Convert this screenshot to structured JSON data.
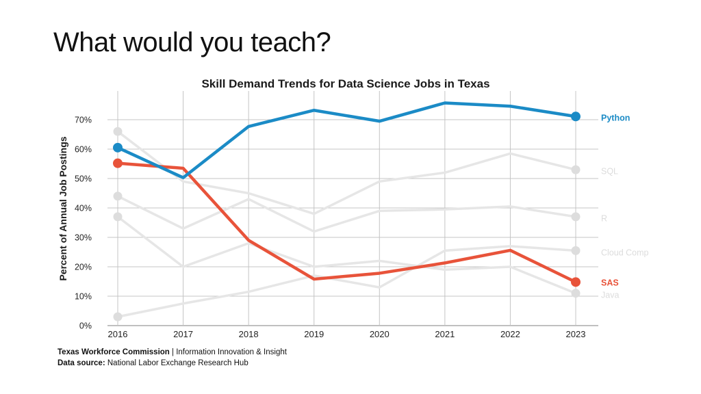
{
  "slide": {
    "title": "What would you teach?"
  },
  "footer": {
    "line1_bold": "Texas Workforce Commission",
    "line1_rest": " | Information Innovation & Insight",
    "line2_bold": "Data source:",
    "line2_rest": " National Labor Exchange Research Hub"
  },
  "colors": {
    "python": "#1b8bc6",
    "sas": "#e8533a",
    "muted_line": "#e6e6e6",
    "muted_label": "#dcdcdc",
    "grid": "#c4c4c4",
    "axis_text": "#222222"
  },
  "chart_data": {
    "type": "line",
    "title": "Skill Demand Trends for Data Science Jobs in Texas",
    "xlabel": "",
    "ylabel": "Percent of Annual Job Postings",
    "x": [
      2016,
      2017,
      2018,
      2019,
      2020,
      2021,
      2022,
      2023
    ],
    "ylim": [
      0,
      80
    ],
    "yticks": [
      0,
      10,
      20,
      30,
      40,
      50,
      60,
      70
    ],
    "ytick_labels": [
      "0%",
      "10%",
      "20%",
      "30%",
      "40%",
      "50%",
      "60%",
      "70%"
    ],
    "grid": true,
    "legend": "direct labels at right end of lines",
    "series": [
      {
        "name": "SQL",
        "values": [
          66,
          49,
          45,
          38,
          49,
          52,
          58.5,
          53
        ],
        "highlight": false
      },
      {
        "name": "R",
        "values": [
          44,
          33,
          43,
          32,
          39,
          39.5,
          40.5,
          37
        ],
        "highlight": false
      },
      {
        "name": "Cloud Comp",
        "values": [
          37,
          20,
          28,
          20,
          22,
          19,
          20,
          11
        ],
        "highlight": false
      },
      {
        "name": "Java",
        "values": [
          3,
          7.5,
          11.5,
          17,
          13,
          25.5,
          27,
          25.5
        ],
        "highlight": false
      },
      {
        "name": "SAS",
        "values": [
          55.2,
          53.5,
          29,
          15.8,
          17.8,
          21.3,
          25.6,
          14.8
        ],
        "highlight": true,
        "color_key": "sas"
      },
      {
        "name": "Python",
        "values": [
          60.5,
          50.3,
          67.7,
          73.2,
          69.5,
          75.7,
          74.6,
          71.1
        ],
        "highlight": true,
        "color_key": "python"
      }
    ]
  }
}
